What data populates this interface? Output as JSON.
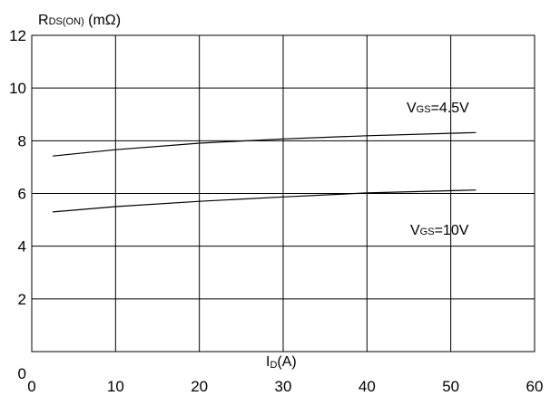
{
  "chart_data": {
    "type": "line",
    "title": "",
    "xlabel": {
      "main": "I",
      "sub": "D",
      "rest": "(A)"
    },
    "ylabel": {
      "main": "R",
      "sub": "DS(ON)",
      "rest": " (mΩ)"
    },
    "xlim": [
      0,
      60
    ],
    "ylim": [
      0,
      12
    ],
    "x_ticks": [
      0,
      10,
      20,
      30,
      40,
      50,
      60
    ],
    "y_ticks": [
      0,
      2,
      4,
      6,
      8,
      10,
      12
    ],
    "grid": true,
    "series": [
      {
        "name": {
          "main": "V",
          "sub": "GS",
          "rest": "=4.5V"
        },
        "x": [
          2.5,
          10,
          20,
          30,
          40,
          53
        ],
        "y": [
          7.42,
          7.66,
          7.91,
          8.07,
          8.19,
          8.31
        ]
      },
      {
        "name": {
          "main": "V",
          "sub": "GS",
          "rest": "=10V"
        },
        "x": [
          2.5,
          10,
          20,
          30,
          40,
          53
        ],
        "y": [
          5.3,
          5.5,
          5.7,
          5.87,
          6.02,
          6.13
        ]
      }
    ]
  }
}
